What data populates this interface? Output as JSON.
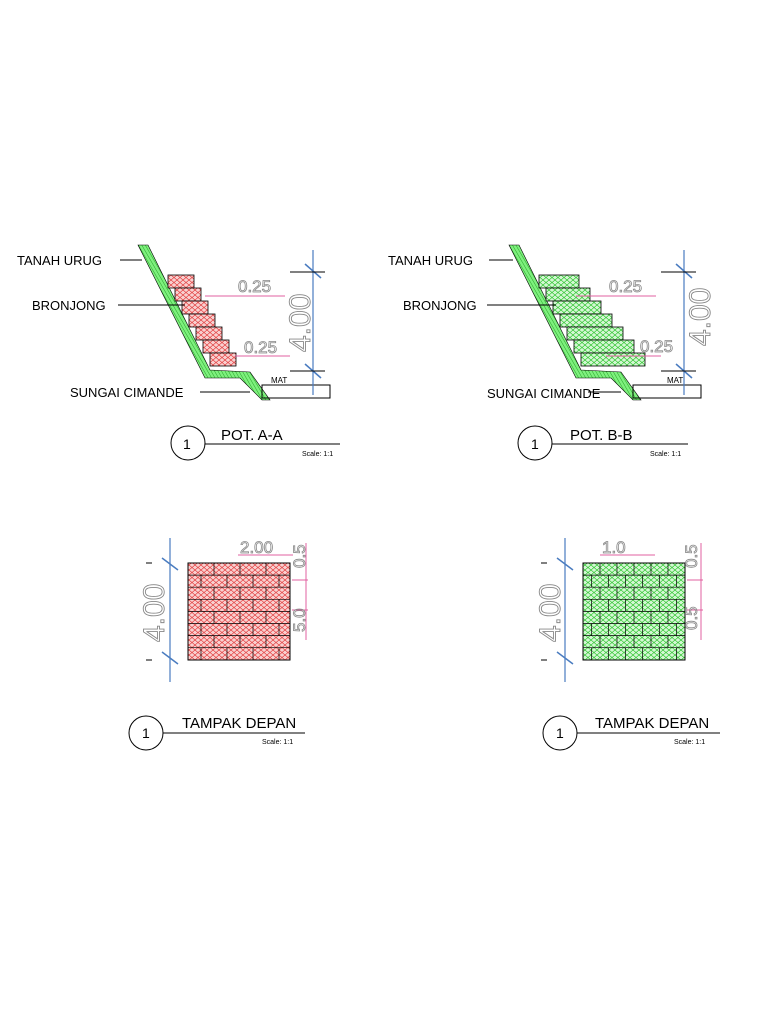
{
  "sections": [
    {
      "labels": {
        "fill": "TANAH URUG",
        "gabion": "BRONJONG",
        "river": "SUNGAI CIMANDE"
      },
      "dimensions": {
        "step_top": "0.25",
        "step_bottom": "0.25",
        "height": "4.00",
        "water": "MAT"
      },
      "caption": {
        "number": "1",
        "title": "POT. A-A",
        "scale": "Scale: 1:1"
      }
    },
    {
      "labels": {
        "fill": "TANAH URUG",
        "gabion": "BRONJONG",
        "river": "SUNGAI CIMANDE"
      },
      "dimensions": {
        "step_top": "0.25",
        "step_bottom": "0.25",
        "height": "4.00",
        "water": "MAT"
      },
      "caption": {
        "number": "1",
        "title": "POT. B-B",
        "scale": "Scale: 1:1"
      }
    }
  ],
  "elevations": [
    {
      "dimensions": {
        "width": "2.00",
        "row_top": "0.5",
        "row_mid": "5.0",
        "height": "4.00"
      },
      "caption": {
        "number": "1",
        "title": "TAMPAK DEPAN",
        "scale": "Scale: 1:1"
      }
    },
    {
      "dimensions": {
        "width": "1.0",
        "row_top": "0.5",
        "row_mid": "0.5",
        "height": "4.00"
      },
      "caption": {
        "number": "1",
        "title": "TAMPAK DEPAN",
        "scale": "Scale: 1:1"
      }
    }
  ]
}
